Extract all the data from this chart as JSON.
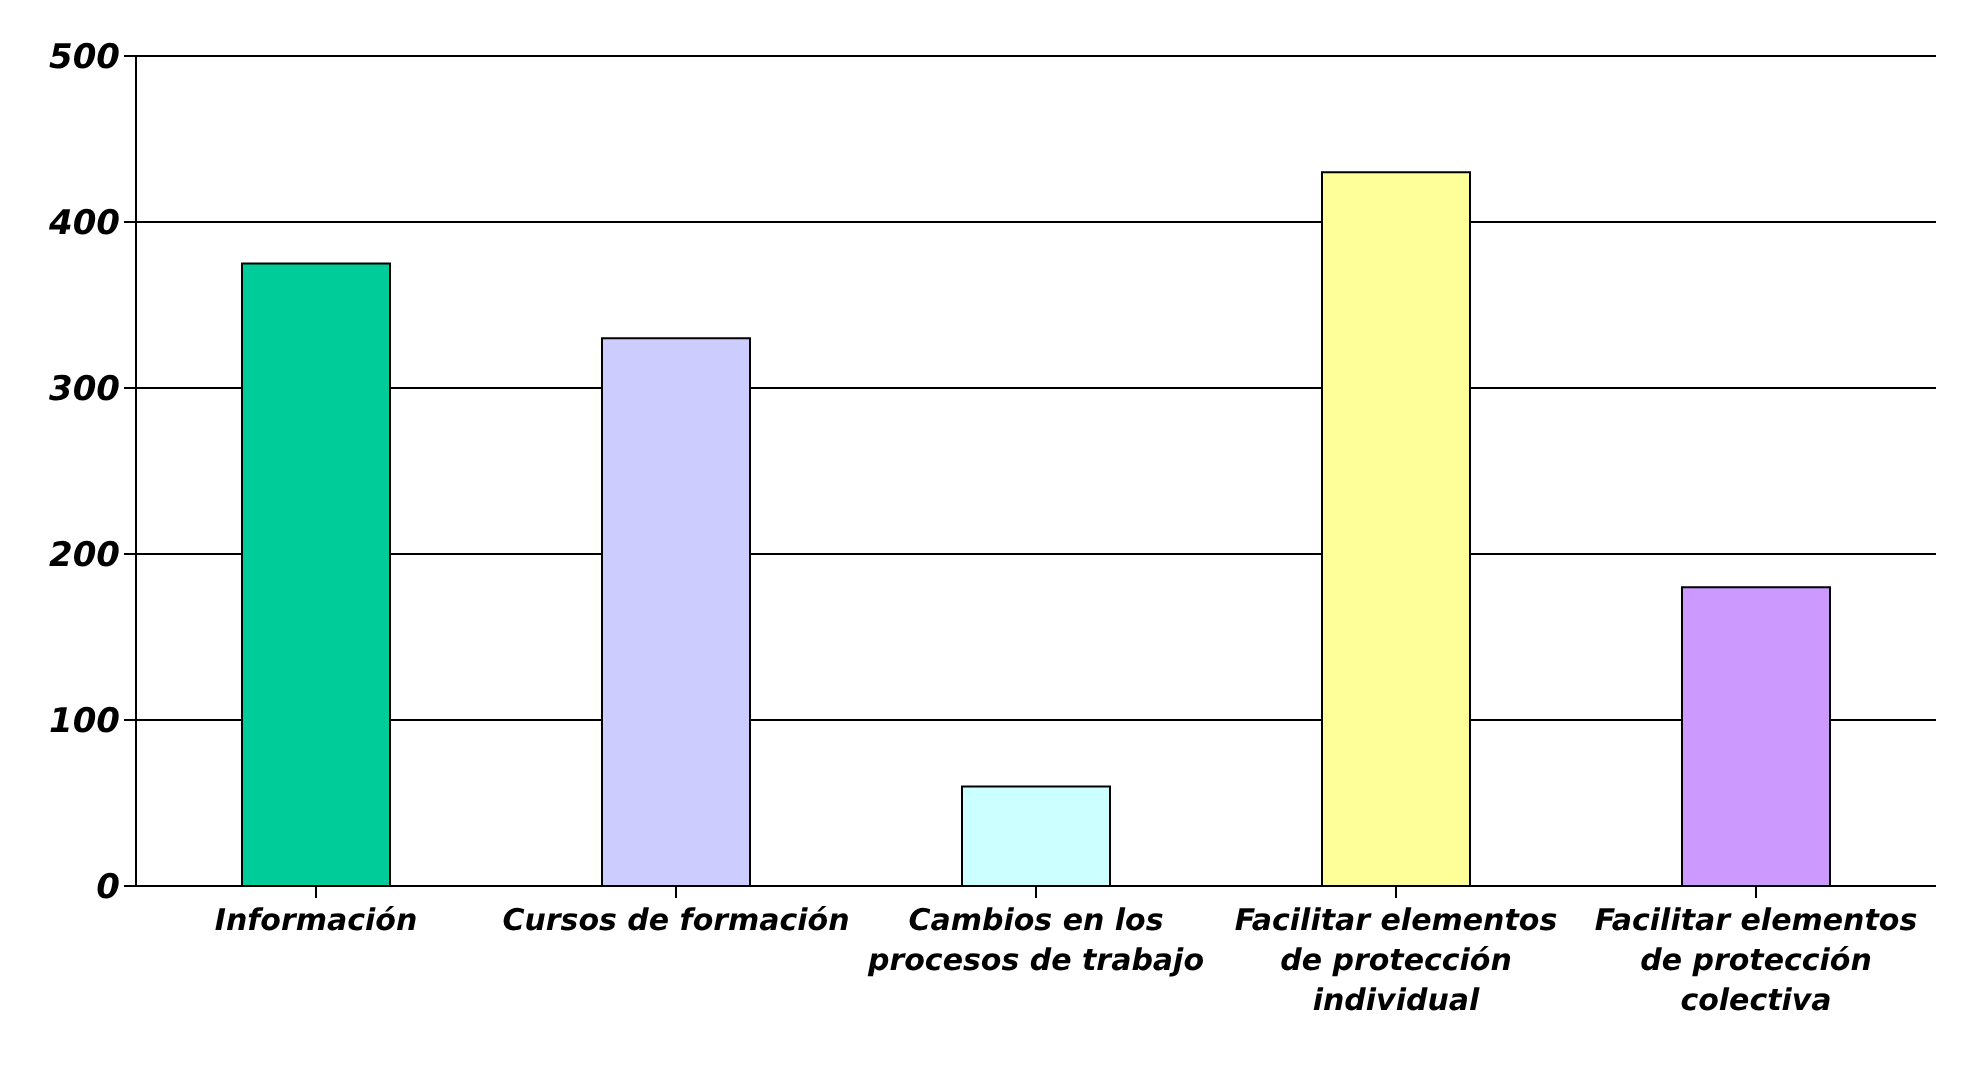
{
  "chart_data": {
    "type": "bar",
    "categories": [
      "Información",
      "Cursos de formación",
      "Cambios en los procesos de trabajo",
      "Facilitar elementos de protección individual",
      "Facilitar elementos de protección colectiva"
    ],
    "values": [
      375,
      330,
      60,
      430,
      180
    ],
    "colors": [
      "#00cc99",
      "#ccccff",
      "#ccffff",
      "#ffff99",
      "#cc99ff"
    ],
    "ylim": [
      0,
      500
    ],
    "yticks": [
      0,
      100,
      200,
      300,
      400,
      500
    ],
    "grid": "y"
  }
}
